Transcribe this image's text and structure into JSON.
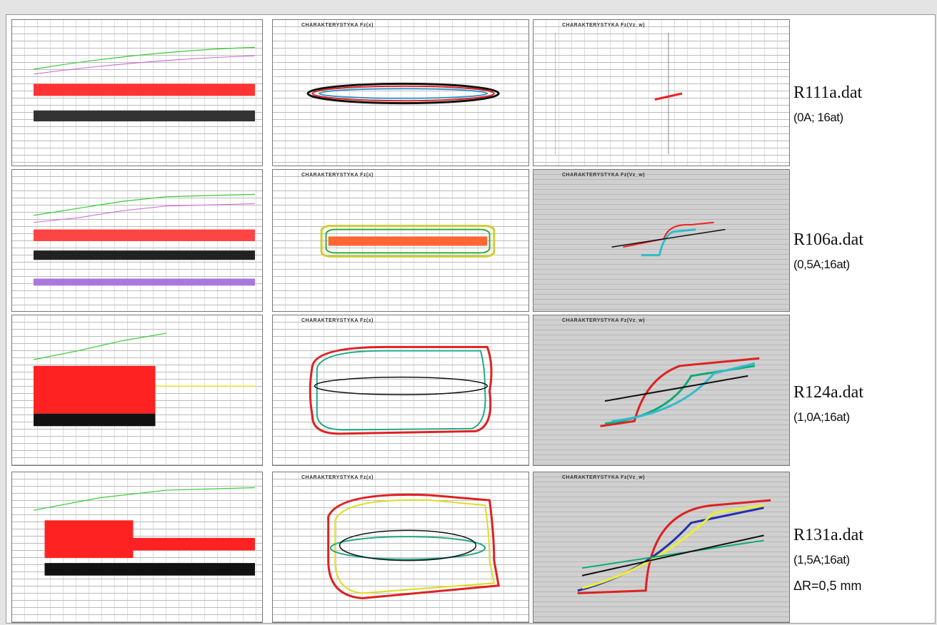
{
  "rows": [
    {
      "file": "R111a.dat",
      "condition": "(0A; 16at)"
    },
    {
      "file": "R106a.dat",
      "condition": "(0,5A;16at)"
    },
    {
      "file": "R124a.dat",
      "condition": "(1,0A;16at)"
    },
    {
      "file": "R131a.dat",
      "condition": "(1,5A;16at)"
    }
  ],
  "note": "ΔR=0,5 mm",
  "panel_titles": {
    "force_displacement": "CHARAKTERYSTYKA Fz(x)",
    "force_velocity": "CHARAKTERYSTYKA Fz(Vz_w)"
  }
}
